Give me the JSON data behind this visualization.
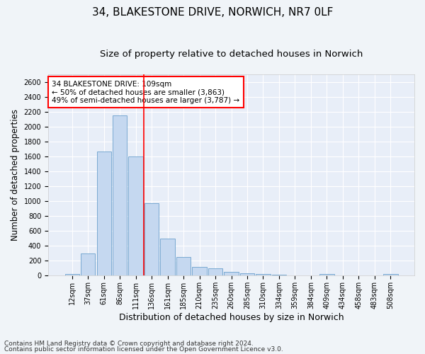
{
  "title1": "34, BLAKESTONE DRIVE, NORWICH, NR7 0LF",
  "title2": "Size of property relative to detached houses in Norwich",
  "xlabel": "Distribution of detached houses by size in Norwich",
  "ylabel": "Number of detached properties",
  "categories": [
    "12sqm",
    "37sqm",
    "61sqm",
    "86sqm",
    "111sqm",
    "136sqm",
    "161sqm",
    "185sqm",
    "210sqm",
    "235sqm",
    "260sqm",
    "285sqm",
    "310sqm",
    "334sqm",
    "359sqm",
    "384sqm",
    "409sqm",
    "434sqm",
    "458sqm",
    "483sqm",
    "508sqm"
  ],
  "values": [
    25,
    300,
    1670,
    2150,
    1600,
    970,
    500,
    248,
    120,
    100,
    50,
    30,
    20,
    12,
    8,
    5,
    20,
    5,
    5,
    5,
    25
  ],
  "bar_color": "#c5d8f0",
  "bar_edge_color": "#6aa0cc",
  "vline_color": "red",
  "annotation_text": "34 BLAKESTONE DRIVE: 109sqm\n← 50% of detached houses are smaller (3,863)\n49% of semi-detached houses are larger (3,787) →",
  "annotation_box_color": "white",
  "annotation_box_edgecolor": "red",
  "footer1": "Contains HM Land Registry data © Crown copyright and database right 2024.",
  "footer2": "Contains public sector information licensed under the Open Government Licence v3.0.",
  "ylim": [
    0,
    2700
  ],
  "yticks": [
    0,
    200,
    400,
    600,
    800,
    1000,
    1200,
    1400,
    1600,
    1800,
    2000,
    2200,
    2400,
    2600
  ],
  "background_color": "#f0f4f8",
  "plot_bg_color": "#e8eef8",
  "grid_color": "white",
  "title1_fontsize": 11,
  "title2_fontsize": 9.5,
  "tick_fontsize": 7,
  "ylabel_fontsize": 8.5,
  "xlabel_fontsize": 9,
  "annotation_fontsize": 7.5,
  "footer_fontsize": 6.5
}
